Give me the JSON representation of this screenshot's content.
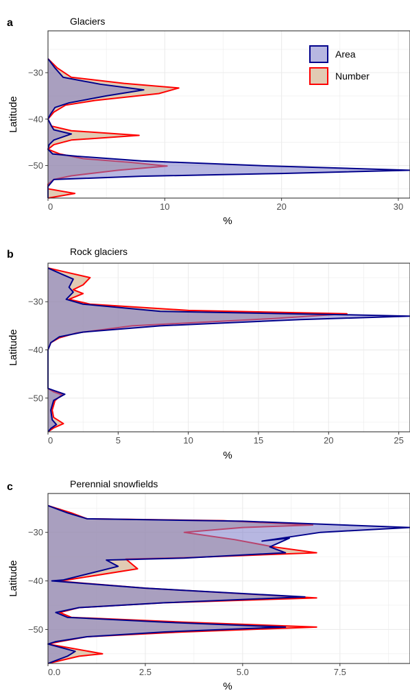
{
  "chart_data": [
    {
      "panel": "a",
      "title": "Glaciers",
      "type": "area",
      "orientation": "horizontal",
      "xlabel": "%",
      "ylabel": "Latitude",
      "xlim": [
        0,
        31
      ],
      "ylim": [
        -57,
        -21
      ],
      "xticks": [
        0,
        10,
        20,
        30
      ],
      "xtick_labels": [
        "0",
        "10",
        "20",
        "30"
      ],
      "yticks": [
        -30,
        -40,
        -50
      ],
      "ytick_labels": [
        "−30",
        "−40",
        "−50"
      ],
      "grid": true,
      "legend": {
        "placement": "top-right",
        "entries": [
          "Area",
          "Number"
        ]
      },
      "series": [
        {
          "name": "Area",
          "color": "#00008b",
          "fill": "#7b7bc8",
          "points": [
            [
              0,
              -27
            ],
            [
              0.6,
              -29
            ],
            [
              1.3,
              -31
            ],
            [
              4.5,
              -32.5
            ],
            [
              8.2,
              -33.7
            ],
            [
              5,
              -35
            ],
            [
              1.8,
              -36.5
            ],
            [
              0.6,
              -37.5
            ],
            [
              0.2,
              -39
            ],
            [
              0,
              -40
            ],
            [
              0.3,
              -41.5
            ],
            [
              0.5,
              -42.3
            ],
            [
              2,
              -43.2
            ],
            [
              0.5,
              -44.5
            ],
            [
              0.1,
              -45.5
            ],
            [
              0,
              -46.5
            ],
            [
              0.4,
              -47.5
            ],
            [
              2.5,
              -48
            ],
            [
              8,
              -49
            ],
            [
              18,
              -50
            ],
            [
              31,
              -51
            ],
            [
              20,
              -51.7
            ],
            [
              8,
              -52.3
            ],
            [
              0.5,
              -53
            ],
            [
              0,
              -54.5
            ],
            [
              0,
              -56
            ],
            [
              0,
              -57
            ]
          ]
        },
        {
          "name": "Number",
          "color": "#ff0000",
          "fill": "#c8a074",
          "points": [
            [
              0,
              -27
            ],
            [
              0.8,
              -29
            ],
            [
              2,
              -31
            ],
            [
              6.5,
              -32.3
            ],
            [
              11.2,
              -33.3
            ],
            [
              9.5,
              -34.5
            ],
            [
              4,
              -36
            ],
            [
              1.5,
              -37
            ],
            [
              0.5,
              -38.5
            ],
            [
              0,
              -40
            ],
            [
              0.3,
              -41.5
            ],
            [
              2,
              -42.5
            ],
            [
              7.8,
              -43.5
            ],
            [
              2,
              -44.5
            ],
            [
              0.5,
              -45.5
            ],
            [
              0,
              -46.5
            ],
            [
              1,
              -47.5
            ],
            [
              3,
              -48.5
            ],
            [
              7,
              -49.3
            ],
            [
              10.2,
              -50.1
            ],
            [
              6,
              -51
            ],
            [
              2,
              -52.2
            ],
            [
              0.5,
              -53
            ],
            [
              0,
              -54
            ],
            [
              0,
              -55
            ],
            [
              2.3,
              -56
            ],
            [
              0,
              -57
            ]
          ]
        }
      ]
    },
    {
      "panel": "b",
      "title": "Rock glaciers",
      "type": "area",
      "orientation": "horizontal",
      "xlabel": "%",
      "ylabel": "Latitude",
      "xlim": [
        0,
        25.8
      ],
      "ylim": [
        -57,
        -22
      ],
      "xticks": [
        0,
        5,
        10,
        15,
        20,
        25
      ],
      "xtick_labels": [
        "0",
        "5",
        "10",
        "15",
        "20",
        "25"
      ],
      "yticks": [
        -30,
        -40,
        -50
      ],
      "ytick_labels": [
        "−30",
        "−40",
        "−50"
      ],
      "grid": true,
      "legend": null,
      "series": [
        {
          "name": "Area",
          "color": "#00008b",
          "fill": "#7b7bc8",
          "points": [
            [
              0,
              -23
            ],
            [
              1,
              -24.3
            ],
            [
              1.8,
              -25.3
            ],
            [
              1.5,
              -27
            ],
            [
              1.8,
              -28
            ],
            [
              1.3,
              -29.5
            ],
            [
              2.5,
              -30.5
            ],
            [
              8,
              -32
            ],
            [
              21.2,
              -32.7
            ],
            [
              25.8,
              -33
            ],
            [
              18,
              -33.7
            ],
            [
              8,
              -35
            ],
            [
              2.5,
              -36.3
            ],
            [
              0.8,
              -37.3
            ],
            [
              0.2,
              -38.5
            ],
            [
              0,
              -40
            ],
            [
              0,
              -48
            ],
            [
              0.5,
              -48.5
            ],
            [
              1.2,
              -49.2
            ],
            [
              0.4,
              -50.5
            ],
            [
              0.2,
              -52.5
            ],
            [
              0.3,
              -54.5
            ],
            [
              0.6,
              -55.5
            ],
            [
              0.2,
              -56.3
            ],
            [
              0,
              -57
            ]
          ]
        },
        {
          "name": "Number",
          "color": "#ff0000",
          "fill": "#c8a074",
          "points": [
            [
              0,
              -23
            ],
            [
              1.5,
              -24
            ],
            [
              3,
              -25
            ],
            [
              2.5,
              -26.5
            ],
            [
              1.8,
              -27.5
            ],
            [
              2.5,
              -28.3
            ],
            [
              1.5,
              -29.5
            ],
            [
              3,
              -30.5
            ],
            [
              10,
              -31.8
            ],
            [
              21.3,
              -32.5
            ],
            [
              16,
              -33.5
            ],
            [
              6,
              -35
            ],
            [
              2,
              -36.5
            ],
            [
              0.8,
              -37.5
            ],
            [
              0.2,
              -38.5
            ],
            [
              0,
              -40
            ],
            [
              0,
              -48
            ],
            [
              0.4,
              -48.7
            ],
            [
              1,
              -49.3
            ],
            [
              0.5,
              -50.5
            ],
            [
              0.3,
              -52.5
            ],
            [
              0.4,
              -54
            ],
            [
              1.1,
              -55.3
            ],
            [
              0.4,
              -56.2
            ],
            [
              0,
              -57
            ]
          ]
        }
      ]
    },
    {
      "panel": "c",
      "title": "Perennial snowfields",
      "type": "area",
      "orientation": "horizontal",
      "xlabel": "%",
      "ylabel": "Latitude",
      "xlim": [
        0,
        9.3
      ],
      "ylim": [
        -57,
        -22
      ],
      "xticks": [
        0,
        2.5,
        5,
        7.5
      ],
      "xtick_labels": [
        "0.0",
        "2.5",
        "5.0",
        "7.5"
      ],
      "yticks": [
        -30,
        -40,
        -50
      ],
      "ytick_labels": [
        "−30",
        "−40",
        "−50"
      ],
      "grid": true,
      "legend": null,
      "series": [
        {
          "name": "Area",
          "color": "#00008b",
          "fill": "#7b7bc8",
          "points": [
            [
              0,
              -24.5
            ],
            [
              0.5,
              -26
            ],
            [
              1,
              -27.2
            ],
            [
              5,
              -27.7
            ],
            [
              9.3,
              -29
            ],
            [
              7,
              -30
            ],
            [
              5.5,
              -31.8
            ],
            [
              6.2,
              -31.2
            ],
            [
              5.7,
              -33
            ],
            [
              6.1,
              -34.2
            ],
            [
              3.5,
              -35.3
            ],
            [
              1.5,
              -35.7
            ],
            [
              1.8,
              -37
            ],
            [
              0.4,
              -39.8
            ],
            [
              0.1,
              -40
            ],
            [
              2.5,
              -41.5
            ],
            [
              6.6,
              -43.3
            ],
            [
              3,
              -44.5
            ],
            [
              0.8,
              -45.5
            ],
            [
              0.2,
              -46.5
            ],
            [
              0.5,
              -47.5
            ],
            [
              3,
              -48.5
            ],
            [
              6.1,
              -49.5
            ],
            [
              3,
              -50.5
            ],
            [
              1,
              -51.5
            ],
            [
              0.2,
              -52.5
            ],
            [
              0,
              -53
            ],
            [
              0.7,
              -54.5
            ],
            [
              0.5,
              -55.5
            ],
            [
              0,
              -57
            ]
          ]
        },
        {
          "name": "Number",
          "color": "#ff0000",
          "fill": "#c8a074",
          "points": [
            [
              0,
              -24.5
            ],
            [
              0.6,
              -26
            ],
            [
              1,
              -27.2
            ],
            [
              4.5,
              -27.6
            ],
            [
              6.8,
              -28.5
            ],
            [
              5,
              -29
            ],
            [
              3.5,
              -30
            ],
            [
              4.8,
              -31.5
            ],
            [
              5.8,
              -33
            ],
            [
              6.9,
              -34.2
            ],
            [
              3.6,
              -35.2
            ],
            [
              2,
              -35.5
            ],
            [
              2.3,
              -37.5
            ],
            [
              0.5,
              -39.8
            ],
            [
              0.2,
              -40
            ],
            [
              2.5,
              -41.5
            ],
            [
              6.9,
              -43.5
            ],
            [
              3,
              -44.5
            ],
            [
              0.8,
              -45.5
            ],
            [
              0.3,
              -46.5
            ],
            [
              0.6,
              -47.5
            ],
            [
              3.5,
              -48.5
            ],
            [
              6.9,
              -49.5
            ],
            [
              3.5,
              -50.5
            ],
            [
              1,
              -51.5
            ],
            [
              0.3,
              -52.5
            ],
            [
              0,
              -53
            ],
            [
              1.4,
              -55
            ],
            [
              0.8,
              -55.5
            ],
            [
              0,
              -57
            ]
          ]
        }
      ]
    }
  ]
}
